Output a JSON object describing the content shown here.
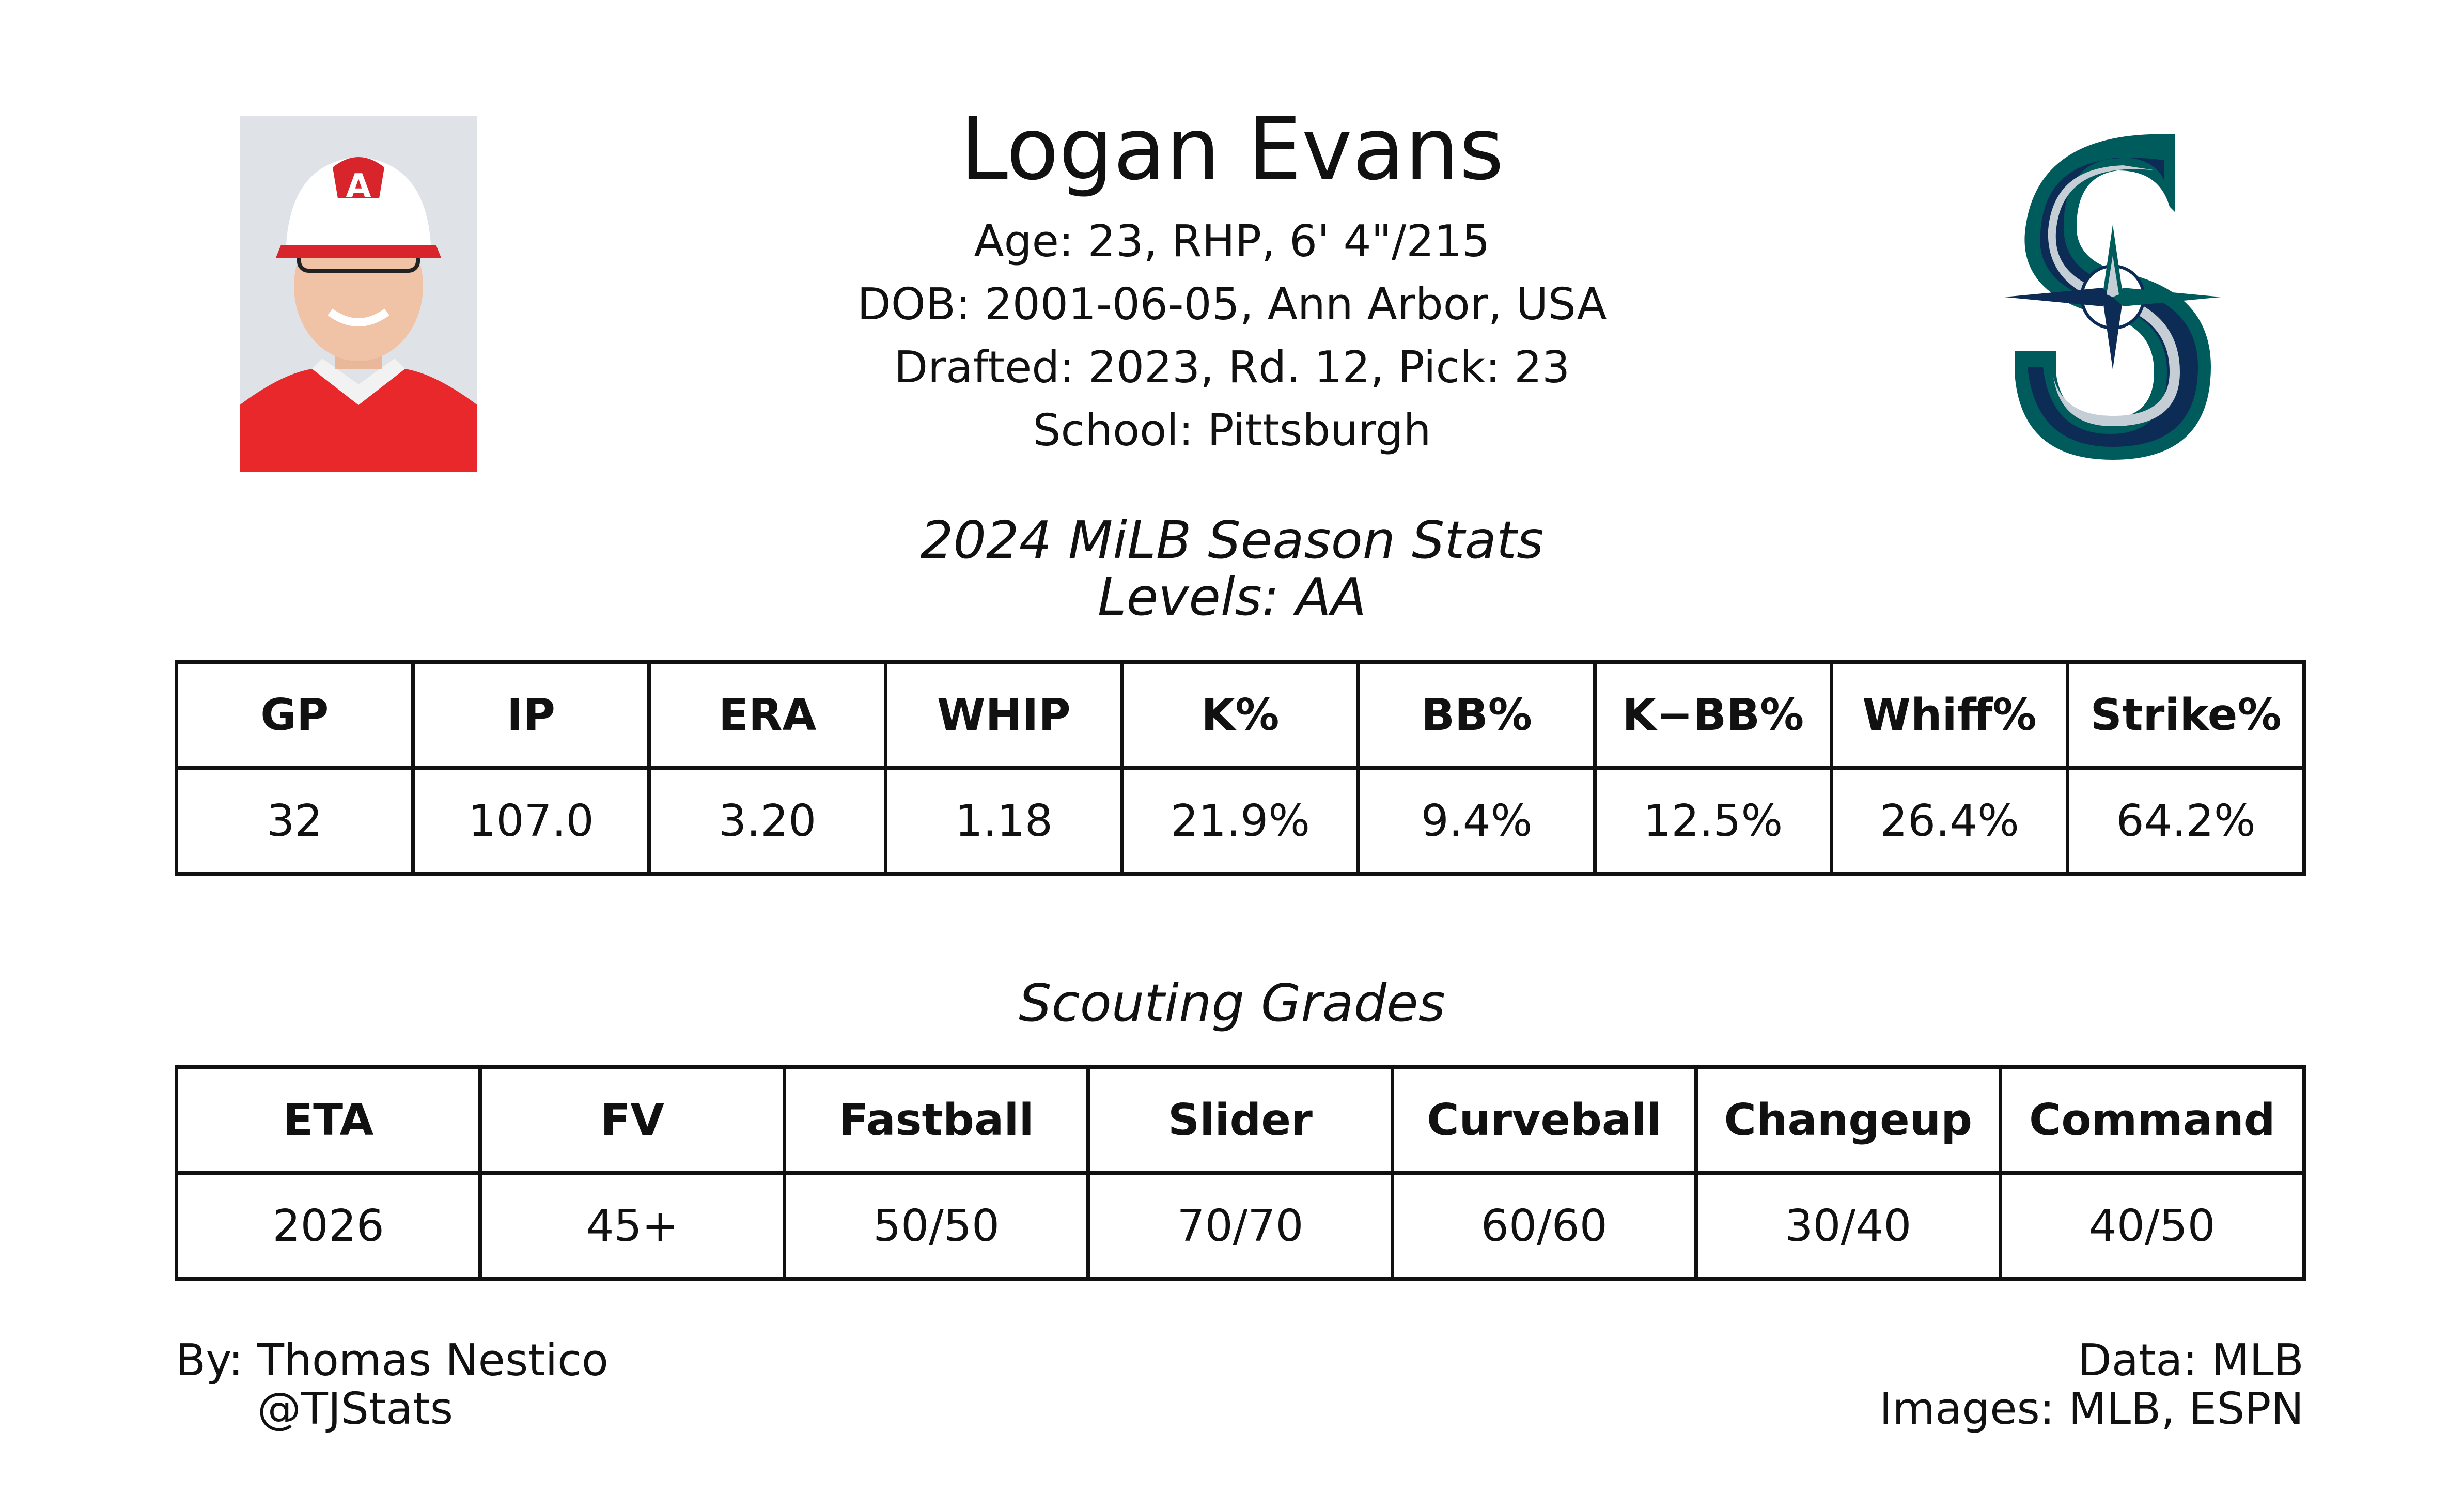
{
  "player": {
    "name": "Logan Evans",
    "age_line": "Age: 23, RHP, 6' 4\"/215",
    "dob_line": "DOB: 2001-06-05, Ann Arbor, USA",
    "draft_line": "Drafted: 2023, Rd. 12, Pick: 23",
    "school_line": "School: Pittsburgh"
  },
  "images": {
    "headshot_icon": "player-headshot",
    "team_logo_icon": "mariners-s-compass-logo"
  },
  "season_stats": {
    "title": "2024 MiLB Season Stats",
    "levels": "Levels: AA",
    "headers": [
      "GP",
      "IP",
      "ERA",
      "WHIP",
      "K%",
      "BB%",
      "K−BB%",
      "Whiff%",
      "Strike%"
    ],
    "values": [
      "32",
      "107.0",
      "3.20",
      "1.18",
      "21.9%",
      "9.4%",
      "12.5%",
      "26.4%",
      "64.2%"
    ]
  },
  "scouting": {
    "title": "Scouting Grades",
    "headers": [
      "ETA",
      "FV",
      "Fastball",
      "Slider",
      "Curveball",
      "Changeup",
      "Command"
    ],
    "values": [
      "2026",
      "45+",
      "50/50",
      "70/70",
      "60/60",
      "30/40",
      "40/50"
    ]
  },
  "footer": {
    "by": "By: Thomas Nestico",
    "handle": "@TJStats",
    "data": "Data: MLB",
    "images": "Images: MLB, ESPN"
  },
  "colors": {
    "logo_teal": "#005C5C",
    "logo_navy": "#0C2C56",
    "logo_silver": "#C4CED4",
    "jersey_red": "#E8282B"
  }
}
